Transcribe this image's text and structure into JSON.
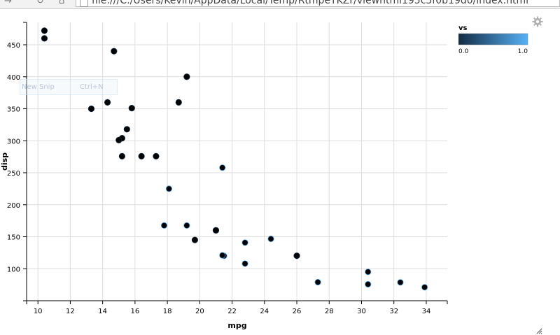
{
  "browser": {
    "url": "file:///C:/Users/Kevin/AppData/Local/Temp/RtmpeYKZr/viewhtml195c3f0b19d0/index.html"
  },
  "overlay": {
    "snip_label": "New Snip",
    "snip_shortcut": "Ctrl+N"
  },
  "chart_data": {
    "type": "scatter",
    "xlabel": "mpg",
    "ylabel": "disp",
    "xlim": [
      9.3,
      35.3
    ],
    "ylim": [
      50,
      485
    ],
    "xticks": [
      10,
      12,
      14,
      16,
      18,
      20,
      22,
      24,
      26,
      28,
      30,
      32,
      34
    ],
    "yticks": [
      100,
      150,
      200,
      250,
      300,
      350,
      400,
      450
    ],
    "grid": true,
    "legend": {
      "title": "vs",
      "min_label": "0.0",
      "max_label": "1.0",
      "color_low": "#132b43",
      "color_high": "#56b1f7",
      "position": "top-right"
    },
    "point_fill": "#000000",
    "points": [
      {
        "x": 21.0,
        "y": 160,
        "vs": 0
      },
      {
        "x": 21.0,
        "y": 160,
        "vs": 0
      },
      {
        "x": 22.8,
        "y": 108,
        "vs": 1
      },
      {
        "x": 21.4,
        "y": 258,
        "vs": 1
      },
      {
        "x": 18.7,
        "y": 360,
        "vs": 0
      },
      {
        "x": 18.1,
        "y": 225,
        "vs": 1
      },
      {
        "x": 14.3,
        "y": 360,
        "vs": 0
      },
      {
        "x": 24.4,
        "y": 146.7,
        "vs": 1
      },
      {
        "x": 22.8,
        "y": 140.8,
        "vs": 1
      },
      {
        "x": 19.2,
        "y": 167.6,
        "vs": 1
      },
      {
        "x": 17.8,
        "y": 167.6,
        "vs": 1
      },
      {
        "x": 16.4,
        "y": 275.8,
        "vs": 0
      },
      {
        "x": 17.3,
        "y": 275.8,
        "vs": 0
      },
      {
        "x": 15.2,
        "y": 275.8,
        "vs": 0
      },
      {
        "x": 10.4,
        "y": 472,
        "vs": 0
      },
      {
        "x": 10.4,
        "y": 460,
        "vs": 0
      },
      {
        "x": 14.7,
        "y": 440,
        "vs": 0
      },
      {
        "x": 32.4,
        "y": 78.7,
        "vs": 1
      },
      {
        "x": 30.4,
        "y": 75.7,
        "vs": 1
      },
      {
        "x": 33.9,
        "y": 71.1,
        "vs": 1
      },
      {
        "x": 21.5,
        "y": 120.1,
        "vs": 1
      },
      {
        "x": 15.5,
        "y": 318,
        "vs": 0
      },
      {
        "x": 15.2,
        "y": 304,
        "vs": 0
      },
      {
        "x": 13.3,
        "y": 350,
        "vs": 0
      },
      {
        "x": 19.2,
        "y": 400,
        "vs": 0
      },
      {
        "x": 27.3,
        "y": 79,
        "vs": 1
      },
      {
        "x": 26.0,
        "y": 120.3,
        "vs": 0
      },
      {
        "x": 30.4,
        "y": 95.1,
        "vs": 1
      },
      {
        "x": 15.8,
        "y": 351,
        "vs": 0
      },
      {
        "x": 19.7,
        "y": 145,
        "vs": 0
      },
      {
        "x": 15.0,
        "y": 301,
        "vs": 0
      },
      {
        "x": 21.4,
        "y": 121,
        "vs": 1
      }
    ]
  }
}
